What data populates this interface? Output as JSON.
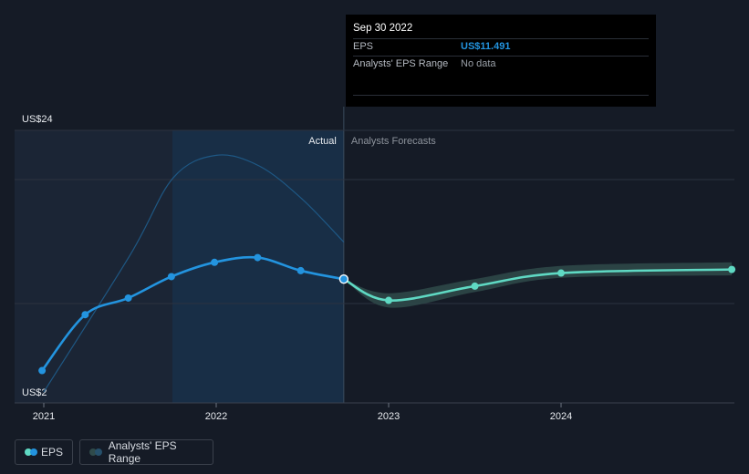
{
  "tooltip": {
    "date": "Sep 30 2022",
    "rows": [
      {
        "label": "EPS",
        "value": "US$11.491"
      },
      {
        "label": "Analysts' EPS Range",
        "value": "No data"
      }
    ]
  },
  "labels": {
    "actual": "Actual",
    "forecast": "Analysts Forecasts",
    "y_top": "US$24",
    "y_bottom": "US$2"
  },
  "legend": {
    "eps": "EPS",
    "range": "Analysts' EPS Range"
  },
  "colors": {
    "background": "#151b26",
    "actual_line": "#2394df",
    "forecast_line": "#5fd9c3",
    "forecast_band": "#2f4a4a",
    "past_region": "#1b2535",
    "highlight_region": "#1a3652"
  },
  "chart_data": {
    "type": "line",
    "x_unit": "year (decimal)",
    "ylim": [
      2,
      24
    ],
    "x_ticks": [
      2021,
      2022,
      2023,
      2024
    ],
    "x_tick_labels": [
      "2021",
      "2022",
      "2023",
      "2024"
    ],
    "series": [
      {
        "name": "EPS",
        "segment": "actual",
        "x": [
          2020.99,
          2021.24,
          2021.49,
          2021.74,
          2021.99,
          2022.24,
          2022.49,
          2022.74
        ],
        "y": [
          3.8,
          8.5,
          9.9,
          11.7,
          12.9,
          13.3,
          12.2,
          11.491
        ]
      },
      {
        "name": "EPS",
        "segment": "forecast",
        "x": [
          2022.74,
          2023.0,
          2023.5,
          2024.0,
          2024.99
        ],
        "y": [
          11.491,
          9.7,
          10.9,
          12.0,
          12.3
        ]
      },
      {
        "name": "Analysts' EPS Range",
        "segment": "forecast",
        "x": [
          2022.74,
          2023.0,
          2023.5,
          2024.0,
          2024.99
        ],
        "low": [
          11.491,
          9.1,
          10.4,
          11.6,
          11.8
        ],
        "high": [
          11.491,
          10.3,
          11.5,
          12.6,
          12.9
        ]
      },
      {
        "name": "",
        "segment": "actual-upper",
        "x": [
          2021.0,
          2021.5,
          2021.75,
          2022.0,
          2022.25,
          2022.5,
          2022.74
        ],
        "y": [
          2.0,
          13.5,
          20.0,
          21.9,
          21.0,
          18.2,
          14.6
        ]
      }
    ]
  }
}
